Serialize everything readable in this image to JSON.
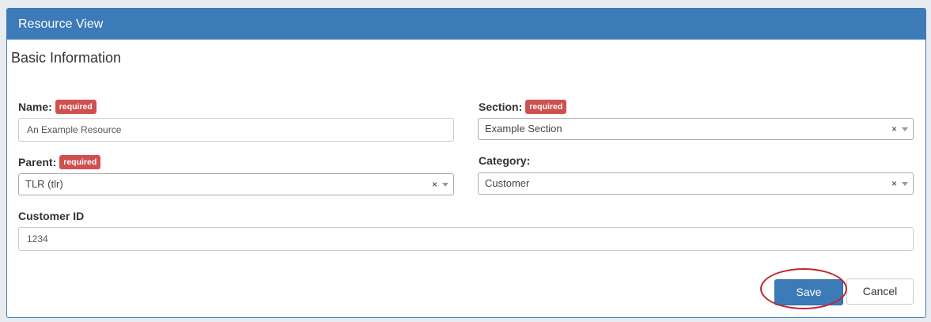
{
  "header": {
    "title": "Resource View"
  },
  "section": {
    "title": "Basic Information"
  },
  "required_badge": "required",
  "fields": {
    "name": {
      "label": "Name:",
      "value": "An Example Resource"
    },
    "section": {
      "label": "Section:",
      "value": "Example Section",
      "clear": "×"
    },
    "parent": {
      "label": "Parent:",
      "value": "TLR (tlr)",
      "clear": "×"
    },
    "category": {
      "label": "Category:",
      "value": "Customer",
      "clear": "×"
    },
    "customer_id": {
      "label": "Customer ID",
      "value": "1234"
    }
  },
  "buttons": {
    "save": "Save",
    "cancel": "Cancel"
  },
  "colors": {
    "primary": "#3d7ab8",
    "required": "#d05050",
    "annotation": "#c0282e"
  }
}
